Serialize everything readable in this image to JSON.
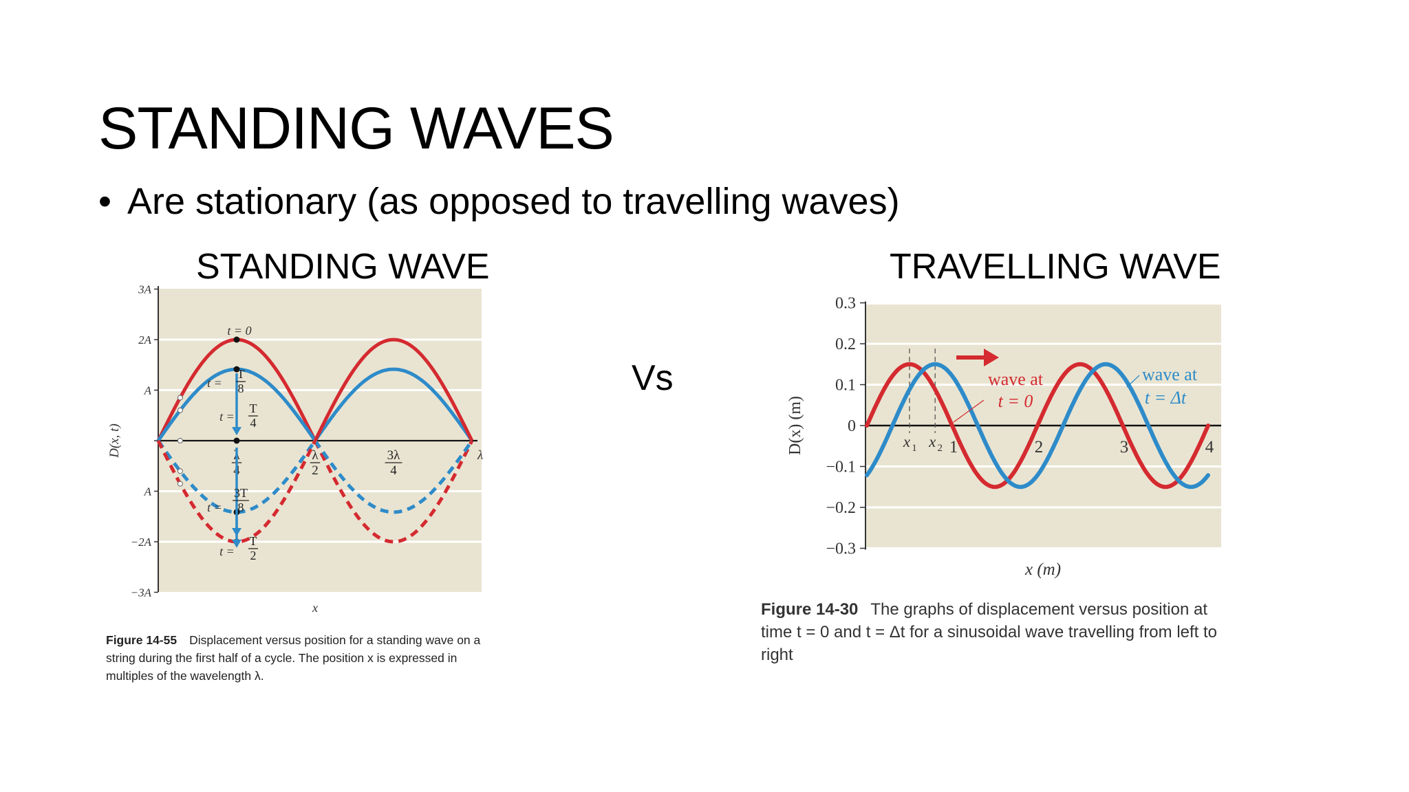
{
  "slide": {
    "title": "STANDING WAVES",
    "bullet_marker": "•",
    "bullet": "Are stationary (as opposed to travelling waves)",
    "vs": "Vs"
  },
  "left": {
    "heading": "STANDING WAVE",
    "caption_label": "Figure 14-55",
    "caption_text": "Displacement versus position for a standing wave on a string during the first half of a cycle. The position x is expressed in multiples of the wavelength λ."
  },
  "right": {
    "heading": "TRAVELLING WAVE",
    "caption_label": "Figure 14-30",
    "caption_text": "The graphs of displacement versus position at time t = 0 and t = Δt for a sinusoidal wave travelling from left to right"
  },
  "colors": {
    "red": "#d42a30",
    "blue": "#2e8bc9",
    "panel": "#e9e4d1",
    "grid": "#ffffff"
  },
  "chart_data": [
    {
      "type": "line",
      "ylabel": "D(x, t)",
      "xlabel": "x",
      "ylim": [
        -3,
        3
      ],
      "xlim": [
        0,
        1
      ],
      "y_ticks": [
        "3A",
        "2A",
        "A",
        "",
        "A",
        "−2A",
        "−3A"
      ],
      "x_ticks": [
        {
          "x": 0.25,
          "num": "λ",
          "den": "4"
        },
        {
          "x": 0.5,
          "num": "λ",
          "den": "2"
        },
        {
          "x": 0.75,
          "num": "3λ",
          "den": "4"
        },
        {
          "x": 1.0,
          "num": "λ",
          "den": ""
        }
      ],
      "series": [
        {
          "label": "t = 0",
          "amplitude": 2,
          "color": "#d42a30",
          "style": "solid-then-dashed"
        },
        {
          "label": "t = T/8",
          "amplitude": 1.414,
          "color": "#2e8bc9",
          "style": "solid-then-dashed"
        },
        {
          "label": "t = T/4",
          "amplitude": 0,
          "color": "#111111",
          "style": "solid"
        },
        {
          "label": "t = 3T/8",
          "amplitude": -1.414,
          "color": "#2e8bc9",
          "style": "dashed-then-solid"
        },
        {
          "label": "t = T/2",
          "amplitude": -2,
          "color": "#d42a30",
          "style": "dashed-then-solid"
        }
      ],
      "annotations": [
        {
          "text_pre": "t = ",
          "text": "0"
        },
        {
          "text_pre": "t = ",
          "num": "T",
          "den": "8"
        },
        {
          "text_pre": "t = ",
          "num": "T",
          "den": "4"
        },
        {
          "text_pre": "t = ",
          "num": "3T",
          "den": "8"
        },
        {
          "text_pre": "t = ",
          "num": "T",
          "den": "2"
        }
      ]
    },
    {
      "type": "line",
      "ylabel": "D(x) (m)",
      "xlabel": "x (m)",
      "xlim": [
        0,
        4
      ],
      "ylim": [
        -0.3,
        0.3
      ],
      "y_ticks": [
        0.3,
        0.2,
        0.1,
        0,
        -0.1,
        -0.2,
        -0.3
      ],
      "y_tick_labels": [
        "0.3",
        "0.2",
        "0.1",
        "0",
        "−0.1",
        "−0.2",
        "−0.3"
      ],
      "x_ticks": [
        "1",
        "2",
        "3",
        "4"
      ],
      "markers": [
        {
          "label": "x",
          "sub": "1",
          "x": 0.5
        },
        {
          "label": "x",
          "sub": "2",
          "x": 0.8
        }
      ],
      "series": [
        {
          "name": "wave at t = 0",
          "label_line1": "wave at",
          "label_line2": "t = 0",
          "amplitude": 0.15,
          "wavelength": 2.0,
          "phase_peak_x": 0.5,
          "color": "#d42a30"
        },
        {
          "name": "wave at t = Δt",
          "label_line1": "wave at",
          "label_line2": "t = Δt",
          "amplitude": 0.15,
          "wavelength": 2.0,
          "phase_peak_x": 0.8,
          "color": "#2e8bc9"
        }
      ]
    }
  ]
}
